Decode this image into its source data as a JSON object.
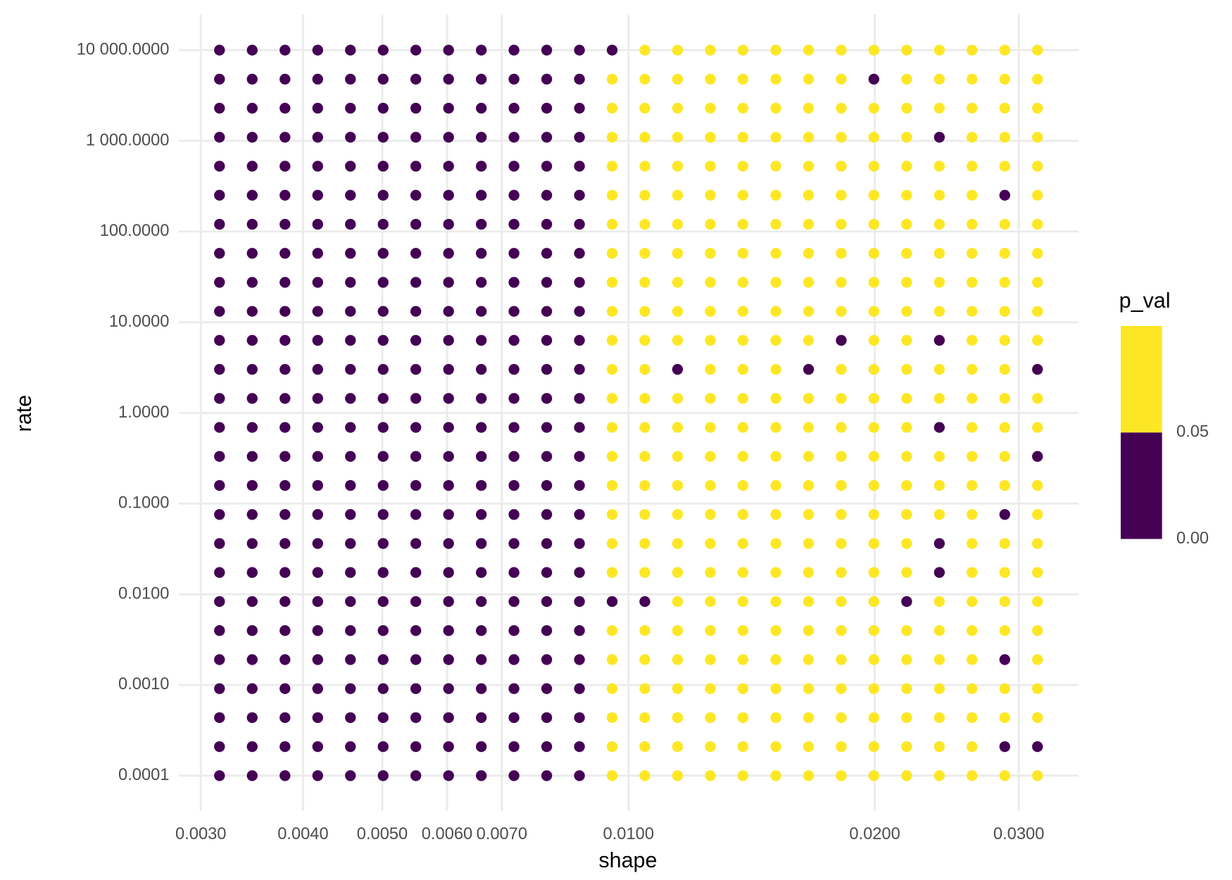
{
  "chart_data": {
    "type": "scatter",
    "x_label": "shape",
    "y_label": "rate",
    "x_log": true,
    "y_log": true,
    "grid": true,
    "x": [
      0.003162,
      0.003467,
      0.003802,
      0.004169,
      0.004571,
      0.005012,
      0.005495,
      0.006026,
      0.006607,
      0.007244,
      0.007943,
      0.00871,
      0.00955,
      0.01047,
      0.01148,
      0.01259,
      0.0138,
      0.01514,
      0.0166,
      0.0182,
      0.01995,
      0.02188,
      0.02399,
      0.0263,
      0.02884,
      0.03162
    ],
    "y": [
      0.0001,
      0.0002089,
      0.0004365,
      0.000912,
      0.001905,
      0.003981,
      0.008318,
      0.01738,
      0.03631,
      0.07586,
      0.1585,
      0.3311,
      0.6918,
      1.445,
      3.02,
      6.31,
      13.18,
      27.54,
      57.54,
      120.2,
      251.2,
      524.8,
      1096,
      2291,
      4786,
      10000
    ],
    "p_val": [
      [
        0.01,
        0.01,
        0.01,
        0.01,
        0.01,
        0.01,
        0.01,
        0.01,
        0.01,
        0.01,
        0.01,
        0.01,
        0.5,
        0.5,
        0.5,
        0.5,
        0.5,
        0.5,
        0.5,
        0.5,
        0.5,
        0.5,
        0.5,
        0.5,
        0.5,
        0.5
      ],
      [
        0.01,
        0.01,
        0.01,
        0.01,
        0.01,
        0.01,
        0.01,
        0.01,
        0.01,
        0.01,
        0.01,
        0.01,
        0.5,
        0.5,
        0.5,
        0.5,
        0.5,
        0.5,
        0.5,
        0.5,
        0.5,
        0.5,
        0.5,
        0.5,
        0.01,
        0.01
      ],
      [
        0.01,
        0.01,
        0.01,
        0.01,
        0.01,
        0.01,
        0.01,
        0.01,
        0.01,
        0.01,
        0.01,
        0.01,
        0.5,
        0.5,
        0.5,
        0.5,
        0.5,
        0.5,
        0.5,
        0.5,
        0.5,
        0.5,
        0.5,
        0.5,
        0.5,
        0.5
      ],
      [
        0.01,
        0.01,
        0.01,
        0.01,
        0.01,
        0.01,
        0.01,
        0.01,
        0.01,
        0.01,
        0.01,
        0.01,
        0.5,
        0.5,
        0.5,
        0.5,
        0.5,
        0.5,
        0.5,
        0.5,
        0.5,
        0.5,
        0.5,
        0.5,
        0.5,
        0.5
      ],
      [
        0.01,
        0.01,
        0.01,
        0.01,
        0.01,
        0.01,
        0.01,
        0.01,
        0.01,
        0.01,
        0.01,
        0.01,
        0.5,
        0.5,
        0.5,
        0.5,
        0.5,
        0.5,
        0.5,
        0.5,
        0.5,
        0.5,
        0.5,
        0.5,
        0.01,
        0.5
      ],
      [
        0.01,
        0.01,
        0.01,
        0.01,
        0.01,
        0.01,
        0.01,
        0.01,
        0.01,
        0.01,
        0.01,
        0.01,
        0.5,
        0.5,
        0.5,
        0.5,
        0.5,
        0.5,
        0.5,
        0.5,
        0.5,
        0.5,
        0.5,
        0.5,
        0.5,
        0.5
      ],
      [
        0.01,
        0.01,
        0.01,
        0.01,
        0.01,
        0.01,
        0.01,
        0.01,
        0.01,
        0.01,
        0.01,
        0.01,
        0.01,
        0.01,
        0.5,
        0.5,
        0.5,
        0.5,
        0.5,
        0.5,
        0.5,
        0.01,
        0.5,
        0.5,
        0.5,
        0.5
      ],
      [
        0.01,
        0.01,
        0.01,
        0.01,
        0.01,
        0.01,
        0.01,
        0.01,
        0.01,
        0.01,
        0.01,
        0.01,
        0.5,
        0.5,
        0.5,
        0.5,
        0.5,
        0.5,
        0.5,
        0.5,
        0.5,
        0.5,
        0.01,
        0.5,
        0.5,
        0.5
      ],
      [
        0.01,
        0.01,
        0.01,
        0.01,
        0.01,
        0.01,
        0.01,
        0.01,
        0.01,
        0.01,
        0.01,
        0.01,
        0.5,
        0.5,
        0.5,
        0.5,
        0.5,
        0.5,
        0.5,
        0.5,
        0.5,
        0.5,
        0.01,
        0.5,
        0.5,
        0.5
      ],
      [
        0.01,
        0.01,
        0.01,
        0.01,
        0.01,
        0.01,
        0.01,
        0.01,
        0.01,
        0.01,
        0.01,
        0.01,
        0.5,
        0.5,
        0.5,
        0.5,
        0.5,
        0.5,
        0.5,
        0.5,
        0.5,
        0.5,
        0.5,
        0.5,
        0.01,
        0.5
      ],
      [
        0.01,
        0.01,
        0.01,
        0.01,
        0.01,
        0.01,
        0.01,
        0.01,
        0.01,
        0.01,
        0.01,
        0.01,
        0.5,
        0.5,
        0.5,
        0.5,
        0.5,
        0.5,
        0.5,
        0.5,
        0.5,
        0.5,
        0.5,
        0.5,
        0.5,
        0.5
      ],
      [
        0.01,
        0.01,
        0.01,
        0.01,
        0.01,
        0.01,
        0.01,
        0.01,
        0.01,
        0.01,
        0.01,
        0.01,
        0.5,
        0.5,
        0.5,
        0.5,
        0.5,
        0.5,
        0.5,
        0.5,
        0.5,
        0.5,
        0.5,
        0.5,
        0.5,
        0.01
      ],
      [
        0.01,
        0.01,
        0.01,
        0.01,
        0.01,
        0.01,
        0.01,
        0.01,
        0.01,
        0.01,
        0.01,
        0.01,
        0.5,
        0.5,
        0.5,
        0.5,
        0.5,
        0.5,
        0.5,
        0.5,
        0.5,
        0.5,
        0.01,
        0.5,
        0.5,
        0.5
      ],
      [
        0.01,
        0.01,
        0.01,
        0.01,
        0.01,
        0.01,
        0.01,
        0.01,
        0.01,
        0.01,
        0.01,
        0.01,
        0.5,
        0.5,
        0.5,
        0.5,
        0.5,
        0.5,
        0.5,
        0.5,
        0.5,
        0.5,
        0.5,
        0.5,
        0.5,
        0.5
      ],
      [
        0.01,
        0.01,
        0.01,
        0.01,
        0.01,
        0.01,
        0.01,
        0.01,
        0.01,
        0.01,
        0.01,
        0.01,
        0.5,
        0.5,
        0.01,
        0.5,
        0.5,
        0.5,
        0.01,
        0.5,
        0.5,
        0.5,
        0.5,
        0.5,
        0.5,
        0.01
      ],
      [
        0.01,
        0.01,
        0.01,
        0.01,
        0.01,
        0.01,
        0.01,
        0.01,
        0.01,
        0.01,
        0.01,
        0.01,
        0.5,
        0.5,
        0.5,
        0.5,
        0.5,
        0.5,
        0.5,
        0.01,
        0.5,
        0.5,
        0.01,
        0.5,
        0.5,
        0.5
      ],
      [
        0.01,
        0.01,
        0.01,
        0.01,
        0.01,
        0.01,
        0.01,
        0.01,
        0.01,
        0.01,
        0.01,
        0.01,
        0.5,
        0.5,
        0.5,
        0.5,
        0.5,
        0.5,
        0.5,
        0.5,
        0.5,
        0.5,
        0.5,
        0.5,
        0.5,
        0.5
      ],
      [
        0.01,
        0.01,
        0.01,
        0.01,
        0.01,
        0.01,
        0.01,
        0.01,
        0.01,
        0.01,
        0.01,
        0.01,
        0.5,
        0.5,
        0.5,
        0.5,
        0.5,
        0.5,
        0.5,
        0.5,
        0.5,
        0.5,
        0.5,
        0.5,
        0.5,
        0.5
      ],
      [
        0.01,
        0.01,
        0.01,
        0.01,
        0.01,
        0.01,
        0.01,
        0.01,
        0.01,
        0.01,
        0.01,
        0.01,
        0.5,
        0.5,
        0.5,
        0.5,
        0.5,
        0.5,
        0.5,
        0.5,
        0.5,
        0.5,
        0.5,
        0.5,
        0.5,
        0.5
      ],
      [
        0.01,
        0.01,
        0.01,
        0.01,
        0.01,
        0.01,
        0.01,
        0.01,
        0.01,
        0.01,
        0.01,
        0.01,
        0.5,
        0.5,
        0.5,
        0.5,
        0.5,
        0.5,
        0.5,
        0.5,
        0.5,
        0.5,
        0.5,
        0.5,
        0.5,
        0.5
      ],
      [
        0.01,
        0.01,
        0.01,
        0.01,
        0.01,
        0.01,
        0.01,
        0.01,
        0.01,
        0.01,
        0.01,
        0.01,
        0.5,
        0.5,
        0.5,
        0.5,
        0.5,
        0.5,
        0.5,
        0.5,
        0.5,
        0.5,
        0.5,
        0.5,
        0.01,
        0.5
      ],
      [
        0.01,
        0.01,
        0.01,
        0.01,
        0.01,
        0.01,
        0.01,
        0.01,
        0.01,
        0.01,
        0.01,
        0.01,
        0.5,
        0.5,
        0.5,
        0.5,
        0.5,
        0.5,
        0.5,
        0.5,
        0.5,
        0.5,
        0.5,
        0.5,
        0.5,
        0.5
      ],
      [
        0.01,
        0.01,
        0.01,
        0.01,
        0.01,
        0.01,
        0.01,
        0.01,
        0.01,
        0.01,
        0.01,
        0.01,
        0.5,
        0.5,
        0.5,
        0.5,
        0.5,
        0.5,
        0.5,
        0.5,
        0.5,
        0.5,
        0.01,
        0.5,
        0.5,
        0.5
      ],
      [
        0.01,
        0.01,
        0.01,
        0.01,
        0.01,
        0.01,
        0.01,
        0.01,
        0.01,
        0.01,
        0.01,
        0.01,
        0.5,
        0.5,
        0.5,
        0.5,
        0.5,
        0.5,
        0.5,
        0.5,
        0.5,
        0.5,
        0.5,
        0.5,
        0.5,
        0.5
      ],
      [
        0.01,
        0.01,
        0.01,
        0.01,
        0.01,
        0.01,
        0.01,
        0.01,
        0.01,
        0.01,
        0.01,
        0.01,
        0.5,
        0.5,
        0.5,
        0.5,
        0.5,
        0.5,
        0.5,
        0.5,
        0.01,
        0.5,
        0.5,
        0.5,
        0.5,
        0.5
      ],
      [
        0.01,
        0.01,
        0.01,
        0.01,
        0.01,
        0.01,
        0.01,
        0.01,
        0.01,
        0.01,
        0.01,
        0.01,
        0.01,
        0.5,
        0.5,
        0.5,
        0.5,
        0.5,
        0.5,
        0.5,
        0.5,
        0.5,
        0.5,
        0.5,
        0.5,
        0.5
      ]
    ],
    "xlim": [
      0.00282,
      0.0355
    ],
    "ylim": [
      4.1e-05,
      24800
    ],
    "xticks": [
      {
        "value": 0.003,
        "label": "0.0030"
      },
      {
        "value": 0.004,
        "label": "0.0040"
      },
      {
        "value": 0.005,
        "label": "0.0050"
      },
      {
        "value": 0.006,
        "label": "0.0060"
      },
      {
        "value": 0.007,
        "label": "0.0070"
      },
      {
        "value": 0.01,
        "label": "0.0100"
      },
      {
        "value": 0.02,
        "label": "0.0200"
      },
      {
        "value": 0.03,
        "label": "0.0300"
      }
    ],
    "yticks": [
      {
        "value": 0.0001,
        "label": "0.0001"
      },
      {
        "value": 0.001,
        "label": "0.0010"
      },
      {
        "value": 0.01,
        "label": "0.0100"
      },
      {
        "value": 0.1,
        "label": "0.1000"
      },
      {
        "value": 1,
        "label": "1.0000"
      },
      {
        "value": 10,
        "label": "10.0000"
      },
      {
        "value": 100,
        "label": "100.0000"
      },
      {
        "value": 1000,
        "label": "1 000.0000"
      },
      {
        "value": 10000,
        "label": "10 000.0000"
      }
    ],
    "legend": {
      "title": "p_val",
      "limits": [
        0,
        0.1
      ],
      "breaks": [
        {
          "value": 0,
          "label": "0.00"
        },
        {
          "value": 0.05,
          "label": "0.05"
        }
      ],
      "colors": [
        "#440154",
        "#fde725"
      ]
    }
  }
}
